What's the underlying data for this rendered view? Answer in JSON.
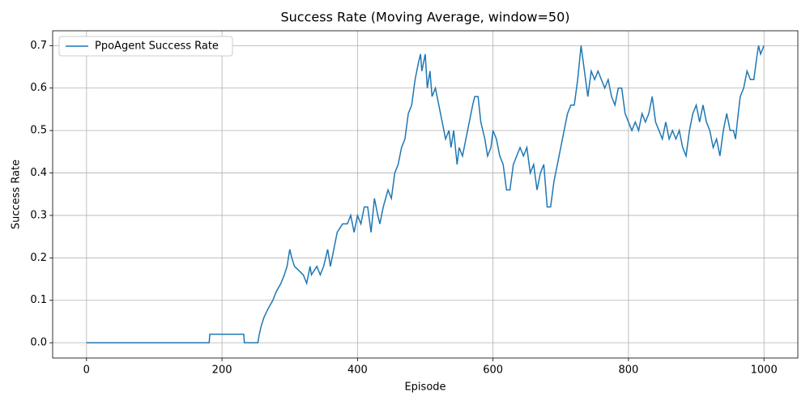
{
  "chart_data": {
    "type": "line",
    "title": "Success Rate (Moving Average, window=50)",
    "xlabel": "Episode",
    "ylabel": "Success Rate",
    "x": [
      0,
      181,
      182,
      232,
      233,
      253,
      255,
      258,
      262,
      268,
      275,
      280,
      287,
      292,
      296,
      300,
      303,
      307,
      320,
      325,
      330,
      332,
      340,
      345,
      350,
      356,
      360,
      365,
      370,
      378,
      385,
      390,
      395,
      400,
      405,
      410,
      415,
      420,
      425,
      430,
      433,
      438,
      445,
      450,
      455,
      460,
      465,
      470,
      475,
      480,
      485,
      490,
      493,
      495,
      500,
      503,
      507,
      510,
      515,
      520,
      525,
      530,
      535,
      538,
      542,
      547,
      550,
      555,
      560,
      565,
      570,
      573,
      578,
      582,
      588,
      592,
      597,
      600,
      605,
      610,
      615,
      620,
      625,
      630,
      635,
      640,
      645,
      650,
      655,
      660,
      665,
      670,
      675,
      680,
      685,
      690,
      695,
      700,
      705,
      710,
      715,
      720,
      725,
      730,
      735,
      740,
      745,
      750,
      755,
      760,
      765,
      770,
      775,
      780,
      785,
      790,
      795,
      800,
      805,
      810,
      815,
      820,
      825,
      830,
      835,
      840,
      845,
      850,
      855,
      860,
      865,
      870,
      875,
      880,
      885,
      890,
      895,
      900,
      905,
      910,
      915,
      920,
      925,
      930,
      935,
      940,
      945,
      950,
      955,
      958,
      962,
      965,
      970,
      975,
      980,
      985,
      990,
      992,
      995,
      1000
    ],
    "series": [
      {
        "name": "PpoAgent Success Rate",
        "color": "#1f77b4",
        "values": [
          0,
          0,
          0.02,
          0.02,
          0,
          0,
          0.02,
          0.04,
          0.06,
          0.08,
          0.1,
          0.12,
          0.14,
          0.16,
          0.18,
          0.22,
          0.2,
          0.18,
          0.16,
          0.14,
          0.18,
          0.16,
          0.18,
          0.16,
          0.18,
          0.22,
          0.18,
          0.22,
          0.26,
          0.28,
          0.28,
          0.3,
          0.26,
          0.3,
          0.28,
          0.32,
          0.32,
          0.26,
          0.34,
          0.3,
          0.28,
          0.32,
          0.36,
          0.34,
          0.4,
          0.42,
          0.46,
          0.48,
          0.54,
          0.56,
          0.62,
          0.66,
          0.68,
          0.64,
          0.68,
          0.6,
          0.64,
          0.58,
          0.6,
          0.56,
          0.52,
          0.48,
          0.5,
          0.46,
          0.5,
          0.42,
          0.46,
          0.44,
          0.48,
          0.52,
          0.56,
          0.58,
          0.58,
          0.52,
          0.48,
          0.44,
          0.46,
          0.5,
          0.48,
          0.44,
          0.42,
          0.36,
          0.36,
          0.42,
          0.44,
          0.46,
          0.44,
          0.46,
          0.4,
          0.42,
          0.36,
          0.4,
          0.42,
          0.32,
          0.32,
          0.38,
          0.42,
          0.46,
          0.5,
          0.54,
          0.56,
          0.56,
          0.62,
          0.7,
          0.64,
          0.58,
          0.64,
          0.62,
          0.64,
          0.62,
          0.6,
          0.62,
          0.58,
          0.56,
          0.6,
          0.6,
          0.54,
          0.52,
          0.5,
          0.52,
          0.5,
          0.54,
          0.52,
          0.54,
          0.58,
          0.52,
          0.5,
          0.48,
          0.52,
          0.48,
          0.5,
          0.48,
          0.5,
          0.46,
          0.44,
          0.5,
          0.54,
          0.56,
          0.52,
          0.56,
          0.52,
          0.5,
          0.46,
          0.48,
          0.44,
          0.5,
          0.54,
          0.5,
          0.5,
          0.48,
          0.54,
          0.58,
          0.6,
          0.64,
          0.62,
          0.62,
          0.68,
          0.7,
          0.68,
          0.7
        ]
      }
    ],
    "xlim": [
      -50,
      1050
    ],
    "ylim": [
      -0.036,
      0.735
    ],
    "xticks": [
      0,
      200,
      400,
      600,
      800,
      1000
    ],
    "yticks": [
      {
        "value": 0,
        "label": "0.0"
      },
      0.1,
      0.2,
      0.3,
      0.4,
      0.5,
      0.6,
      0.7
    ],
    "grid": true,
    "legend": "upper left"
  }
}
